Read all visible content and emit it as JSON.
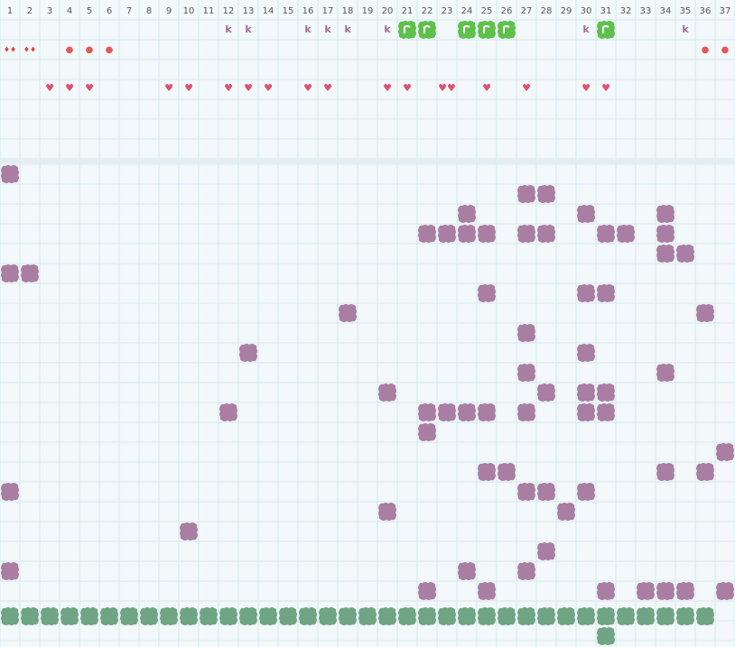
{
  "columns": [
    1,
    2,
    3,
    4,
    5,
    6,
    7,
    8,
    9,
    10,
    11,
    12,
    13,
    14,
    15,
    16,
    17,
    18,
    19,
    20,
    21,
    22,
    23,
    24,
    25,
    26,
    27,
    28,
    29,
    30,
    31,
    32,
    33,
    34,
    35,
    36,
    37
  ],
  "top": {
    "row1_letters": [
      {
        "col": 12,
        "text": "k"
      },
      {
        "col": 13,
        "text": "k"
      },
      {
        "col": 16,
        "text": "k"
      },
      {
        "col": 17,
        "text": "k"
      },
      {
        "col": 18,
        "text": "k"
      },
      {
        "col": 20,
        "text": "k"
      },
      {
        "col": 30,
        "text": "k"
      },
      {
        "col": 35,
        "text": "k"
      }
    ],
    "row1_pieces": [
      21,
      22,
      24,
      25,
      26,
      31
    ],
    "row2_symbols": [
      {
        "col": 1,
        "text": "♦♦"
      },
      {
        "col": 2,
        "text": "♦♦"
      },
      {
        "col": 4,
        "text": "●"
      },
      {
        "col": 5,
        "text": "●"
      },
      {
        "col": 6,
        "text": "●"
      },
      {
        "col": 36,
        "text": "●"
      },
      {
        "col": 37,
        "text": "●"
      }
    ],
    "row4_symbols": [
      {
        "col": 3,
        "text": "♥"
      },
      {
        "col": 4,
        "text": "♥"
      },
      {
        "col": 5,
        "text": "♥"
      },
      {
        "col": 9,
        "text": "♥"
      },
      {
        "col": 10,
        "text": "♥"
      },
      {
        "col": 12,
        "text": "♥"
      },
      {
        "col": 13,
        "text": "♥"
      },
      {
        "col": 14,
        "text": "♥"
      },
      {
        "col": 16,
        "text": "♥"
      },
      {
        "col": 17,
        "text": "♥"
      },
      {
        "col": 20,
        "text": "♥"
      },
      {
        "col": 21,
        "text": "♥"
      },
      {
        "col": 23,
        "text": "♥♥"
      },
      {
        "col": 25,
        "text": "♥"
      },
      {
        "col": 27,
        "text": "♥"
      },
      {
        "col": 30,
        "text": "♥"
      },
      {
        "col": 31,
        "text": "♥"
      }
    ]
  },
  "middle_rows": [
    [
      1
    ],
    [
      27,
      28
    ],
    [
      24,
      30,
      34
    ],
    [
      22,
      23,
      24,
      25,
      27,
      28,
      31,
      32,
      34
    ],
    [
      34,
      35
    ],
    [
      1,
      2
    ],
    [
      25,
      30,
      31
    ],
    [
      18,
      36
    ],
    [
      27
    ],
    [
      13,
      30
    ],
    [
      27,
      34
    ],
    [
      20,
      28,
      30,
      31
    ],
    [
      12,
      22,
      23,
      24,
      25,
      27,
      30,
      31
    ],
    [
      22
    ],
    [
      37
    ],
    [
      25,
      26,
      34,
      36
    ],
    [
      1,
      27,
      28,
      30
    ],
    [
      20,
      29
    ],
    [
      10
    ],
    [
      28
    ],
    [
      1,
      24,
      27
    ],
    [
      22,
      25,
      31,
      33,
      34,
      35,
      37
    ]
  ],
  "bottom_rows": [
    [
      1,
      2,
      3,
      4,
      5,
      6,
      7,
      8,
      9,
      10,
      11,
      12,
      13,
      14,
      15,
      16,
      17,
      18,
      19,
      20,
      21,
      22,
      23,
      24,
      25,
      26,
      27,
      28,
      29,
      30,
      31,
      32,
      33,
      34,
      35,
      36
    ],
    [
      31
    ]
  ]
}
